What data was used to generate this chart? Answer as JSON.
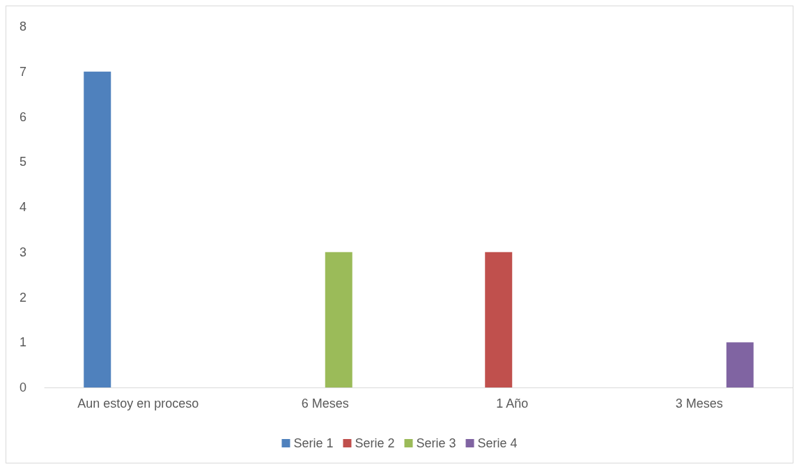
{
  "chart_data": {
    "type": "bar",
    "categories": [
      "Aun estoy en proceso",
      "6 Meses",
      "1 Año",
      "3 Meses"
    ],
    "series": [
      {
        "name": "Serie 1",
        "color": "#4f81bd",
        "values": [
          7,
          null,
          null,
          null
        ]
      },
      {
        "name": "Serie 2",
        "color": "#c0504d",
        "values": [
          null,
          null,
          3,
          null
        ]
      },
      {
        "name": "Serie 3",
        "color": "#9bbb59",
        "values": [
          null,
          3,
          null,
          null
        ]
      },
      {
        "name": "Serie 4",
        "color": "#8064a2",
        "values": [
          null,
          null,
          null,
          1
        ]
      }
    ],
    "ylim": [
      0,
      8
    ],
    "yticks": [
      0,
      1,
      2,
      3,
      4,
      5,
      6,
      7,
      8
    ],
    "grid": false,
    "legend": "bottom"
  }
}
